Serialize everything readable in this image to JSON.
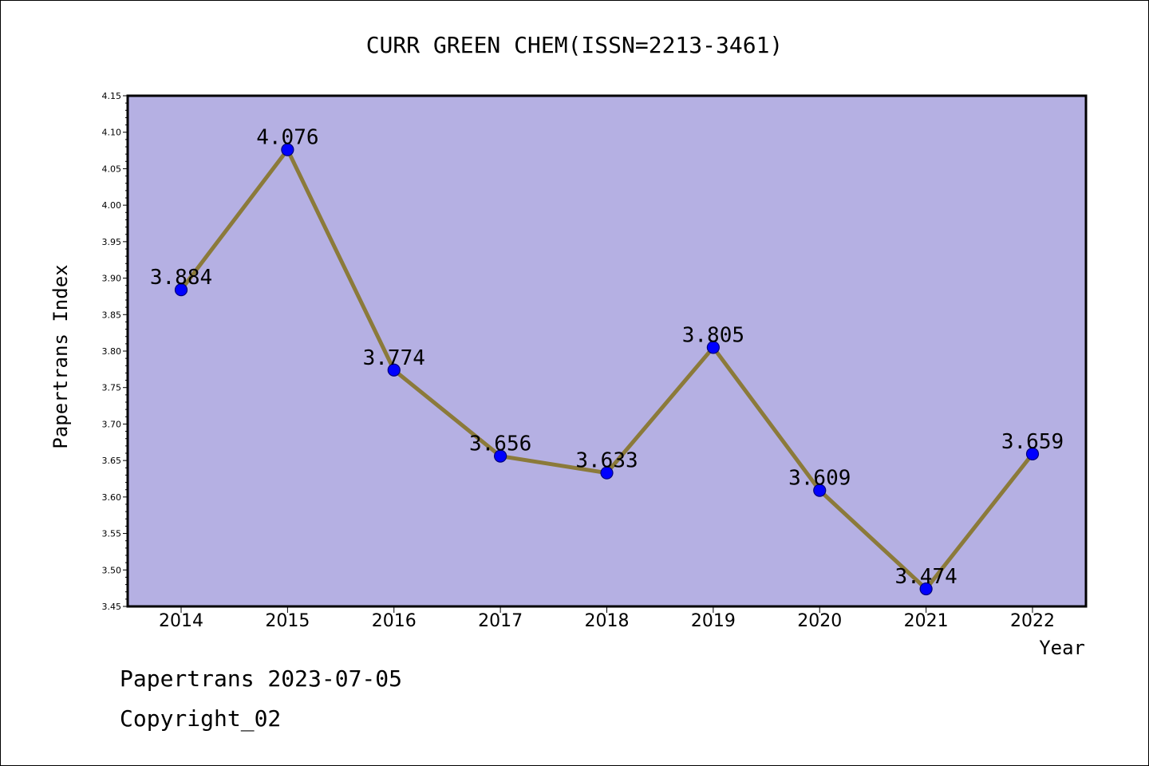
{
  "chart_data": {
    "type": "line",
    "title": "CURR GREEN CHEM(ISSN=2213-3461)",
    "xlabel": "Year",
    "ylabel": "Papertrans Index",
    "categories": [
      "2014",
      "2015",
      "2016",
      "2017",
      "2018",
      "2019",
      "2020",
      "2021",
      "2022"
    ],
    "values": [
      3.884,
      4.076,
      3.774,
      3.656,
      3.633,
      3.805,
      3.609,
      3.474,
      3.659
    ],
    "value_labels": [
      "3.884",
      "4.076",
      "3.774",
      "3.656",
      "3.633",
      "3.805",
      "3.609",
      "3.474",
      "3.659"
    ],
    "ylim": [
      3.45,
      4.15
    ],
    "yticks": [
      "3.45",
      "3.50",
      "3.55",
      "3.60",
      "3.65",
      "3.70",
      "3.75",
      "3.80",
      "3.85",
      "3.90",
      "3.95",
      "4.00",
      "4.05",
      "4.10",
      "4.15"
    ],
    "grid": false,
    "colors": {
      "plot_background": "#b5b0e3",
      "line": "#8b7a3a",
      "marker": "#0000ff",
      "marker_edge": "#00007a"
    }
  },
  "footer": {
    "line1": "Papertrans 2023-07-05",
    "line2": "Copyright_02"
  }
}
